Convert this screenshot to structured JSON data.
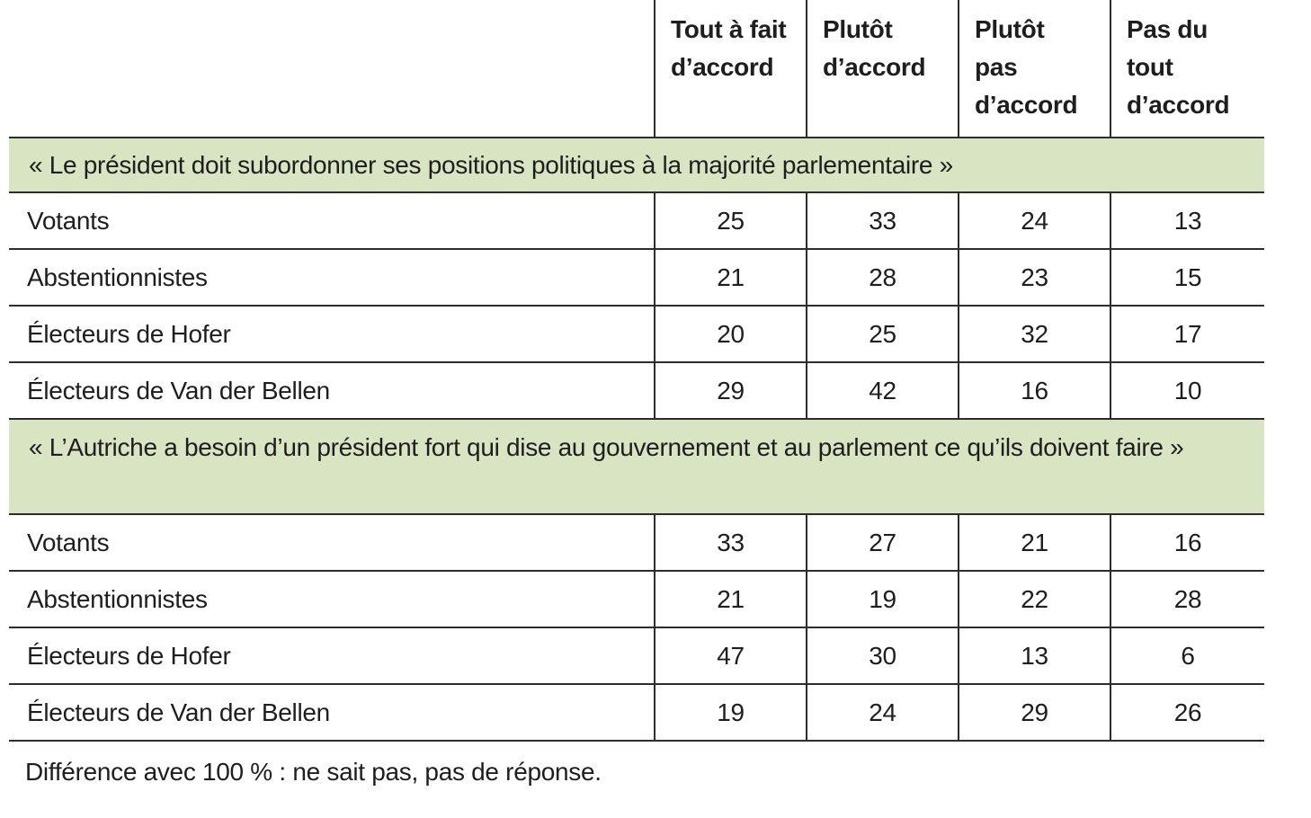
{
  "colors": {
    "band_green": "#d8e4c2",
    "border": "#2d2d2d",
    "text": "#1e1e1e"
  },
  "table": {
    "column_headers": [
      "Tout à fait d’accord",
      "Plutôt d’accord",
      "Plutôt pas d’accord",
      "Pas du tout d’accord"
    ],
    "sections": [
      {
        "statement": "« Le président doit subordonner ses positions politiques à la majorité parlementaire »",
        "rows": [
          {
            "label": "Votants",
            "values": [
              25,
              33,
              24,
              13
            ]
          },
          {
            "label": "Abstentionnistes",
            "values": [
              21,
              28,
              23,
              15
            ]
          },
          {
            "label": "Électeurs de Hofer",
            "values": [
              20,
              25,
              32,
              17
            ]
          },
          {
            "label": "Électeurs de Van der Bellen",
            "values": [
              29,
              42,
              16,
              10
            ]
          }
        ]
      },
      {
        "statement": "« L’Autriche a besoin d’un président fort qui dise au gouvernement et au parlement ce qu’ils doivent faire »",
        "rows": [
          {
            "label": "Votants",
            "values": [
              33,
              27,
              21,
              16
            ]
          },
          {
            "label": "Abstentionnistes",
            "values": [
              21,
              19,
              22,
              28
            ]
          },
          {
            "label": "Électeurs de Hofer",
            "values": [
              47,
              30,
              13,
              6
            ]
          },
          {
            "label": "Électeurs de Van der Bellen",
            "values": [
              19,
              24,
              29,
              26
            ]
          }
        ]
      }
    ],
    "footnote": "Différence avec 100 % : ne sait pas, pas de réponse."
  },
  "chart_data": {
    "type": "table",
    "column_headers": [
      "Tout à fait d’accord",
      "Plutôt d’accord",
      "Plutôt pas d’accord",
      "Pas du tout d’accord"
    ],
    "sections": [
      {
        "statement": "« Le président doit subordonner ses positions politiques à la majorité parlementaire »",
        "categories": [
          "Votants",
          "Abstentionnistes",
          "Électeurs de Hofer",
          "Électeurs de Van der Bellen"
        ],
        "values": [
          [
            25,
            33,
            24,
            13
          ],
          [
            21,
            28,
            23,
            15
          ],
          [
            20,
            25,
            32,
            17
          ],
          [
            29,
            42,
            16,
            10
          ]
        ]
      },
      {
        "statement": "« L’Autriche a besoin d’un président fort qui dise au gouvernement et au parlement ce qu’ils doivent faire »",
        "categories": [
          "Votants",
          "Abstentionnistes",
          "Électeurs de Hofer",
          "Électeurs de Van der Bellen"
        ],
        "values": [
          [
            33,
            27,
            21,
            16
          ],
          [
            21,
            19,
            22,
            28
          ],
          [
            47,
            30,
            13,
            6
          ],
          [
            19,
            24,
            29,
            26
          ]
        ]
      }
    ],
    "footnote": "Différence avec 100 % : ne sait pas, pas de réponse.",
    "units": "percent"
  }
}
